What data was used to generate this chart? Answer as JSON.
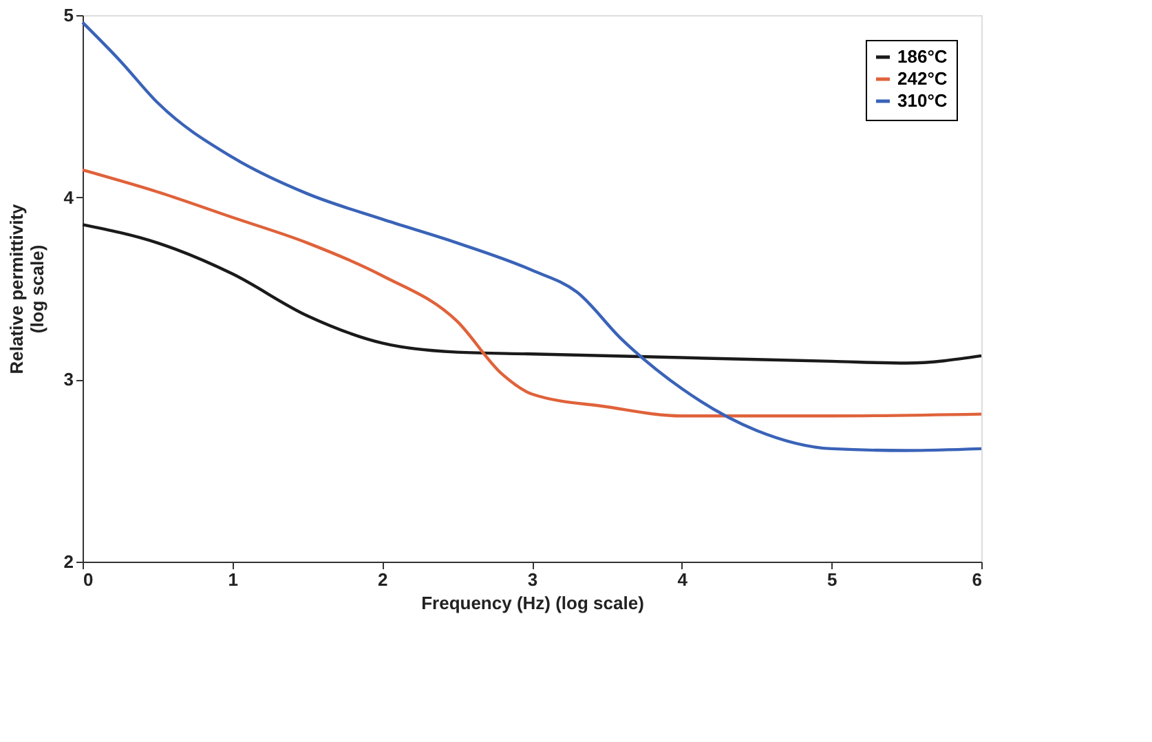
{
  "chart_data": {
    "type": "line",
    "xlabel": "Frequency (Hz) (log scale)",
    "ylabel": "Relative permittivity\n(log scale)",
    "xlim": [
      0,
      6
    ],
    "xticks": [
      0,
      1,
      2,
      3,
      4,
      5,
      6
    ],
    "ylim": [
      2,
      5
    ],
    "yticks": [
      2,
      3,
      4,
      5
    ],
    "grid": false,
    "legend": "top right",
    "marker": "none",
    "line_style": "solid",
    "series": [
      {
        "name": "186°C",
        "color": "#1a1a1a",
        "x": [
          0,
          0.5,
          1,
          1.5,
          2,
          2.5,
          3,
          4,
          5,
          5.5,
          6
        ],
        "values": [
          3.85,
          3.75,
          3.58,
          3.35,
          3.2,
          3.15,
          3.14,
          3.12,
          3.1,
          3.09,
          3.13
        ]
      },
      {
        "name": "242°C",
        "color": "#e0623a",
        "x": [
          0,
          0.5,
          1,
          1.5,
          2,
          2.5,
          2.8,
          3,
          3.5,
          4,
          5,
          6
        ],
        "values": [
          4.15,
          4.03,
          3.89,
          3.75,
          3.57,
          3.32,
          3.03,
          2.92,
          2.85,
          2.8,
          2.8,
          2.81
        ]
      },
      {
        "name": "310°C",
        "color": "#3a63b8",
        "x": [
          0,
          0.25,
          0.5,
          1,
          1.5,
          2,
          2.5,
          3,
          3.3,
          3.6,
          4,
          4.5,
          5,
          5.5,
          6
        ],
        "values": [
          4.96,
          4.75,
          4.52,
          4.22,
          4.02,
          3.88,
          3.75,
          3.6,
          3.48,
          3.22,
          2.95,
          2.72,
          2.62,
          2.61,
          2.62
        ]
      }
    ]
  }
}
